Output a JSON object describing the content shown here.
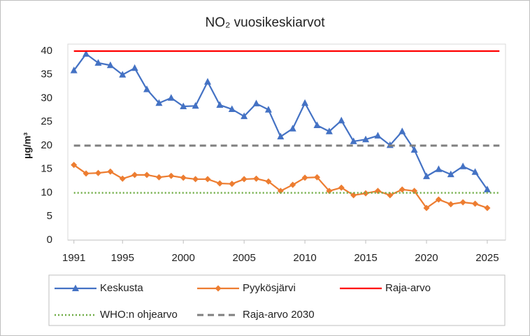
{
  "chart_data": {
    "type": "line",
    "title": "NO₂ vuosikeskiarvot",
    "y_label": "µg/m³",
    "x": [
      1991,
      1992,
      1993,
      1994,
      1995,
      1996,
      1997,
      1998,
      1999,
      2000,
      2001,
      2002,
      2003,
      2004,
      2005,
      2006,
      2007,
      2008,
      2009,
      2010,
      2011,
      2012,
      2013,
      2014,
      2015,
      2016,
      2017,
      2018,
      2019,
      2020,
      2021,
      2022,
      2023,
      2024,
      2025
    ],
    "xlim": [
      1990.5,
      2026.5
    ],
    "xticks": [
      1991,
      1995,
      2000,
      2005,
      2010,
      2015,
      2020,
      2025
    ],
    "ylim": [
      0,
      40
    ],
    "yticks": [
      0,
      5,
      10,
      15,
      20,
      25,
      30,
      35,
      40
    ],
    "grid": false,
    "legend": "bottom",
    "series": [
      {
        "name": "Keskusta",
        "color": "#4472c4",
        "marker": "triangle",
        "dash": "solid",
        "values": [
          35.9,
          39.4,
          37.5,
          37.0,
          35.0,
          36.4,
          31.9,
          29.0,
          30.1,
          28.3,
          28.4,
          33.5,
          28.6,
          27.7,
          26.2,
          28.9,
          27.6,
          21.9,
          23.6,
          29.0,
          24.3,
          23.0,
          25.3,
          20.9,
          21.3,
          22.1,
          20.1,
          23.0,
          19.1,
          13.5,
          15.0,
          13.9,
          15.6,
          14.4,
          10.7
        ]
      },
      {
        "name": "Pyykösjärvi",
        "color": "#ed7d31",
        "marker": "diamond",
        "dash": "solid",
        "values": [
          15.9,
          14.1,
          14.2,
          14.5,
          13.0,
          13.8,
          13.8,
          13.3,
          13.6,
          13.2,
          12.9,
          12.9,
          12.0,
          11.9,
          12.9,
          13.0,
          12.4,
          10.4,
          11.7,
          13.2,
          13.3,
          10.4,
          11.1,
          9.5,
          9.9,
          10.4,
          9.5,
          10.7,
          10.4,
          6.8,
          8.6,
          7.6,
          8.0,
          7.7,
          6.8
        ]
      },
      {
        "name": "Raja-arvo",
        "color": "#ff0000",
        "marker": "none",
        "dash": "solid",
        "x": [
          1991,
          2026
        ],
        "values": [
          40,
          40
        ]
      },
      {
        "name": "WHO:n ohjearvo",
        "color": "#70ad47",
        "marker": "none",
        "dash": "dotted",
        "x": [
          1991,
          2026
        ],
        "values": [
          10,
          10
        ]
      },
      {
        "name": "Raja-arvo 2030",
        "color": "#7f7f7f",
        "marker": "none",
        "dash": "dashed",
        "x": [
          1991,
          2026
        ],
        "values": [
          20,
          20
        ]
      }
    ]
  }
}
